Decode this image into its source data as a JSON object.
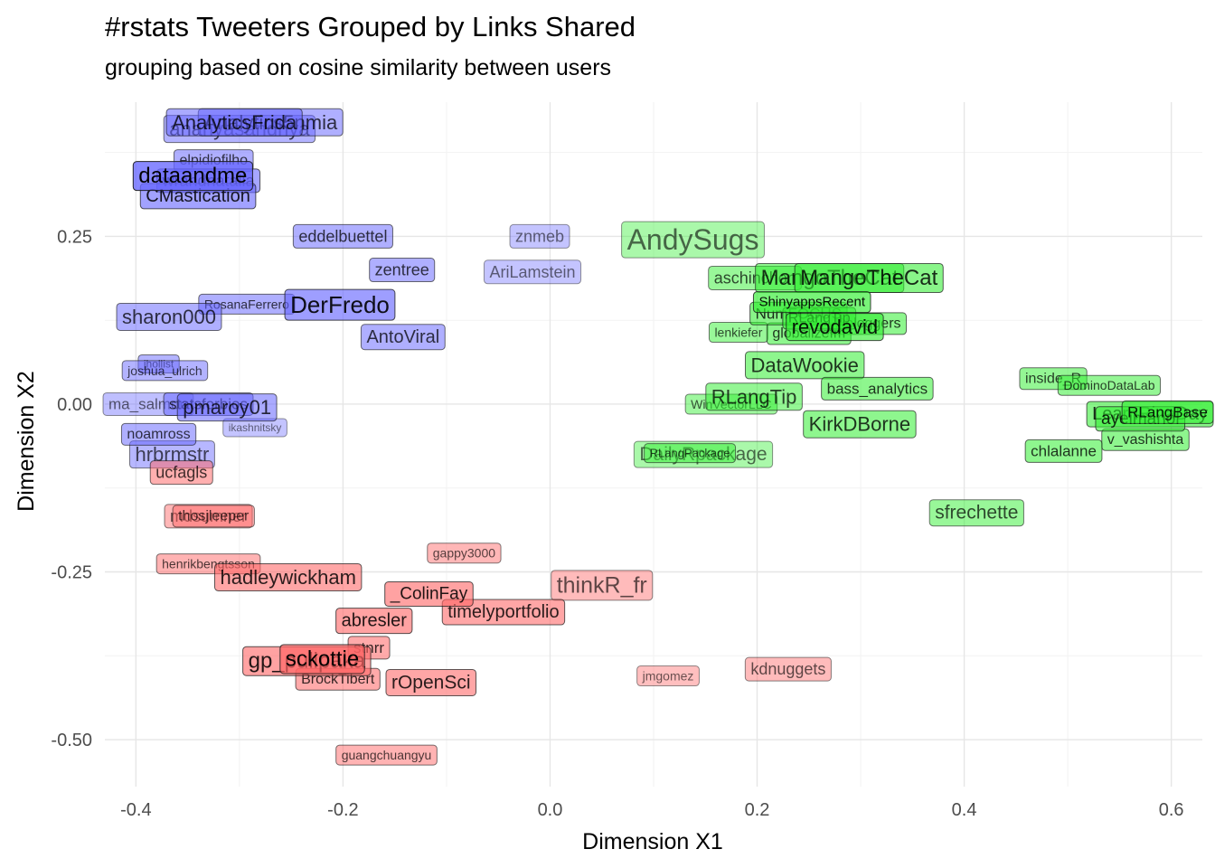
{
  "chart_data": {
    "type": "scatter",
    "title": "#rstats Tweeters Grouped by Links Shared",
    "subtitle": "grouping based on cosine similarity between users",
    "xlabel": "Dimension X1",
    "ylabel": "Dimension X2",
    "xlim": [
      -0.43,
      0.63
    ],
    "ylim": [
      -0.57,
      0.45
    ],
    "x_ticks": [
      -0.4,
      -0.2,
      0.0,
      0.2,
      0.4,
      0.6
    ],
    "x_tick_labels": [
      "-0.4",
      "-0.2",
      "0.0",
      "0.2",
      "0.4",
      "0.6"
    ],
    "y_ticks": [
      -0.5,
      -0.25,
      0.0,
      0.25
    ],
    "y_tick_labels": [
      "-0.50",
      "-0.25",
      "0.00",
      "0.25"
    ],
    "grid": true,
    "legend": "none",
    "colors": {
      "blue": "#6666ff",
      "green": "#33ee33",
      "red": "#ff6666"
    },
    "points": [
      {
        "label": "AnalyticsFrida",
        "x": -0.305,
        "y": 0.42,
        "group": "blue",
        "weight": 0.55,
        "size": 22
      },
      {
        "label": "ananyasandhya",
        "x": -0.3,
        "y": 0.41,
        "group": "blue",
        "weight": 0.45,
        "size": 22
      },
      {
        "label": "Analytics5nmia",
        "x": -0.27,
        "y": 0.42,
        "group": "blue",
        "weight": 0.5,
        "size": 22
      },
      {
        "label": "elpidiofilho",
        "x": -0.325,
        "y": 0.363,
        "group": "blue",
        "weight": 0.5,
        "size": 16
      },
      {
        "label": "dataandme",
        "x": -0.345,
        "y": 0.34,
        "group": "blue",
        "weight": 0.95,
        "size": 24
      },
      {
        "label": "wrandnatalia",
        "x": -0.33,
        "y": 0.333,
        "group": "blue",
        "weight": 0.6,
        "size": 18
      },
      {
        "label": "CMastication",
        "x": -0.34,
        "y": 0.31,
        "group": "blue",
        "weight": 0.65,
        "size": 20
      },
      {
        "label": "eddelbuettel",
        "x": -0.2,
        "y": 0.25,
        "group": "blue",
        "weight": 0.5,
        "size": 18
      },
      {
        "label": "zentree",
        "x": -0.143,
        "y": 0.2,
        "group": "blue",
        "weight": 0.5,
        "size": 18
      },
      {
        "label": "znmeb",
        "x": -0.01,
        "y": 0.25,
        "group": "blue",
        "weight": 0.25,
        "size": 18
      },
      {
        "label": "AriLamstein",
        "x": -0.017,
        "y": 0.197,
        "group": "blue",
        "weight": 0.25,
        "size": 18
      },
      {
        "label": "RosanaFerrero",
        "x": -0.293,
        "y": 0.149,
        "group": "blue",
        "weight": 0.5,
        "size": 14
      },
      {
        "label": "DerFredo",
        "x": -0.203,
        "y": 0.148,
        "group": "blue",
        "weight": 0.7,
        "size": 26
      },
      {
        "label": "sharon000",
        "x": -0.368,
        "y": 0.13,
        "group": "blue",
        "weight": 0.5,
        "size": 22
      },
      {
        "label": "AntoViral",
        "x": -0.142,
        "y": 0.1,
        "group": "blue",
        "weight": 0.5,
        "size": 20
      },
      {
        "label": "jhollist",
        "x": -0.378,
        "y": 0.06,
        "group": "blue",
        "weight": 0.45,
        "size": 12
      },
      {
        "label": "joshua_ulrich",
        "x": -0.372,
        "y": 0.05,
        "group": "blue",
        "weight": 0.45,
        "size": 14
      },
      {
        "label": "ma_salmon",
        "x": -0.395,
        "y": 0.0,
        "group": "blue",
        "weight": 0.3,
        "size": 17
      },
      {
        "label": "statsforbios",
        "x": -0.33,
        "y": 0.0,
        "group": "blue",
        "weight": 0.5,
        "size": 17
      },
      {
        "label": "pmaroy01",
        "x": -0.312,
        "y": -0.005,
        "group": "blue",
        "weight": 0.55,
        "size": 22
      },
      {
        "label": "noamross",
        "x": -0.378,
        "y": -0.045,
        "group": "blue",
        "weight": 0.5,
        "size": 16
      },
      {
        "label": "ikashnitsky",
        "x": -0.285,
        "y": -0.035,
        "group": "blue",
        "weight": 0.25,
        "size": 12
      },
      {
        "label": "hrbrmstr",
        "x": -0.365,
        "y": -0.075,
        "group": "blue",
        "weight": 0.4,
        "size": 22
      },
      {
        "label": "ucfagls",
        "x": -0.356,
        "y": -0.102,
        "group": "red",
        "weight": 0.5,
        "size": 18
      },
      {
        "label": "mdsumner",
        "x": -0.33,
        "y": -0.167,
        "group": "red",
        "weight": 0.4,
        "size": 18
      },
      {
        "label": "thosjleeper",
        "x": -0.325,
        "y": -0.167,
        "group": "red",
        "weight": 0.45,
        "size": 16
      },
      {
        "label": "henrikbengtsson",
        "x": -0.33,
        "y": -0.238,
        "group": "red",
        "weight": 0.45,
        "size": 14
      },
      {
        "label": "hadleywickham",
        "x": -0.253,
        "y": -0.258,
        "group": "red",
        "weight": 0.6,
        "size": 22
      },
      {
        "label": "gappy3000",
        "x": -0.083,
        "y": -0.222,
        "group": "red",
        "weight": 0.4,
        "size": 14
      },
      {
        "label": "thinkR_fr",
        "x": 0.05,
        "y": -0.27,
        "group": "red",
        "weight": 0.35,
        "size": 25
      },
      {
        "label": "_ColinFay",
        "x": -0.117,
        "y": -0.283,
        "group": "red",
        "weight": 0.65,
        "size": 19
      },
      {
        "label": "timelyportfolio",
        "x": -0.045,
        "y": -0.31,
        "group": "red",
        "weight": 0.6,
        "size": 20
      },
      {
        "label": "abresler",
        "x": -0.17,
        "y": -0.323,
        "group": "red",
        "weight": 0.65,
        "size": 20
      },
      {
        "label": "stnrr",
        "x": -0.175,
        "y": -0.363,
        "group": "red",
        "weight": 0.55,
        "size": 17
      },
      {
        "label": "gp_pulipaka",
        "x": -0.235,
        "y": -0.383,
        "group": "red",
        "weight": 0.65,
        "size": 24
      },
      {
        "label": "sckottie",
        "x": -0.22,
        "y": -0.38,
        "group": "red",
        "weight": 0.8,
        "size": 24
      },
      {
        "label": "BrockTibert",
        "x": -0.205,
        "y": -0.41,
        "group": "red",
        "weight": 0.55,
        "size": 16
      },
      {
        "label": "rOpenSci",
        "x": -0.115,
        "y": -0.415,
        "group": "red",
        "weight": 0.6,
        "size": 21
      },
      {
        "label": "jmgomez",
        "x": 0.114,
        "y": -0.405,
        "group": "red",
        "weight": 0.3,
        "size": 14
      },
      {
        "label": "kdnuggets",
        "x": 0.23,
        "y": -0.395,
        "group": "red",
        "weight": 0.35,
        "size": 18
      },
      {
        "label": "guangchuangyu",
        "x": -0.158,
        "y": -0.523,
        "group": "red",
        "weight": 0.45,
        "size": 14
      },
      {
        "label": "AndySugs",
        "x": 0.138,
        "y": 0.245,
        "group": "green",
        "weight": 0.3,
        "size": 32
      },
      {
        "label": "aschinchon",
        "x": 0.198,
        "y": 0.188,
        "group": "green",
        "weight": 0.45,
        "size": 18
      },
      {
        "label": "MangoTheCat",
        "x": 0.308,
        "y": 0.188,
        "group": "green",
        "weight": 0.6,
        "size": 24
      },
      {
        "label": "MangoTheCat",
        "x": 0.27,
        "y": 0.188,
        "group": "green",
        "weight": 0.55,
        "size": 24
      },
      {
        "label": "ShinyappsRecent",
        "x": 0.253,
        "y": 0.152,
        "group": "green",
        "weight": 0.75,
        "size": 15
      },
      {
        "label": "NumFOCUS",
        "x": 0.24,
        "y": 0.135,
        "group": "green",
        "weight": 0.6,
        "size": 17
      },
      {
        "label": "RLangTip",
        "x": 0.26,
        "y": 0.128,
        "group": "green",
        "weight": 0.6,
        "size": 16
      },
      {
        "label": "revodavid",
        "x": 0.275,
        "y": 0.115,
        "group": "green",
        "weight": 0.7,
        "size": 22
      },
      {
        "label": "Rbloggers",
        "x": 0.307,
        "y": 0.12,
        "group": "green",
        "weight": 0.55,
        "size": 16
      },
      {
        "label": "lenkiefer",
        "x": 0.182,
        "y": 0.107,
        "group": "green",
        "weight": 0.45,
        "size": 14
      },
      {
        "label": "globalizefm",
        "x": 0.25,
        "y": 0.105,
        "group": "green",
        "weight": 0.55,
        "size": 16
      },
      {
        "label": "DataWookie",
        "x": 0.246,
        "y": 0.058,
        "group": "green",
        "weight": 0.55,
        "size": 22
      },
      {
        "label": "bass_analytics",
        "x": 0.316,
        "y": 0.023,
        "group": "green",
        "weight": 0.55,
        "size": 17
      },
      {
        "label": "RLangTip",
        "x": 0.197,
        "y": 0.011,
        "group": "green",
        "weight": 0.5,
        "size": 22
      },
      {
        "label": "WinVectorLLC",
        "x": 0.175,
        "y": 0.0,
        "group": "green",
        "weight": 0.4,
        "size": 14
      },
      {
        "label": "KirkDBorne",
        "x": 0.299,
        "y": -0.03,
        "group": "green",
        "weight": 0.55,
        "size": 22
      },
      {
        "label": "DailyRpackage",
        "x": 0.148,
        "y": -0.075,
        "group": "green",
        "weight": 0.3,
        "size": 21
      },
      {
        "label": "RLangPackage",
        "x": 0.135,
        "y": -0.073,
        "group": "green",
        "weight": 0.45,
        "size": 13
      },
      {
        "label": "inside_R",
        "x": 0.486,
        "y": 0.038,
        "group": "green",
        "weight": 0.5,
        "size": 16
      },
      {
        "label": "DominoDataLab",
        "x": 0.54,
        "y": 0.028,
        "group": "green",
        "weight": 0.5,
        "size": 14
      },
      {
        "label": "LearnRinaDay",
        "x": 0.58,
        "y": -0.015,
        "group": "green",
        "weight": 0.6,
        "size": 20
      },
      {
        "label": "ayeimanol",
        "x": 0.57,
        "y": -0.022,
        "group": "green",
        "weight": 0.6,
        "size": 19
      },
      {
        "label": "RLangBase",
        "x": 0.61,
        "y": -0.012,
        "group": "green",
        "weight": 0.65,
        "size": 17
      },
      {
        "label": "v_vashishta",
        "x": 0.575,
        "y": -0.053,
        "group": "green",
        "weight": 0.55,
        "size": 16
      },
      {
        "label": "chlalanne",
        "x": 0.496,
        "y": -0.07,
        "group": "green",
        "weight": 0.55,
        "size": 17
      },
      {
        "label": "sfrechette",
        "x": 0.412,
        "y": -0.162,
        "group": "green",
        "weight": 0.45,
        "size": 21
      }
    ]
  }
}
